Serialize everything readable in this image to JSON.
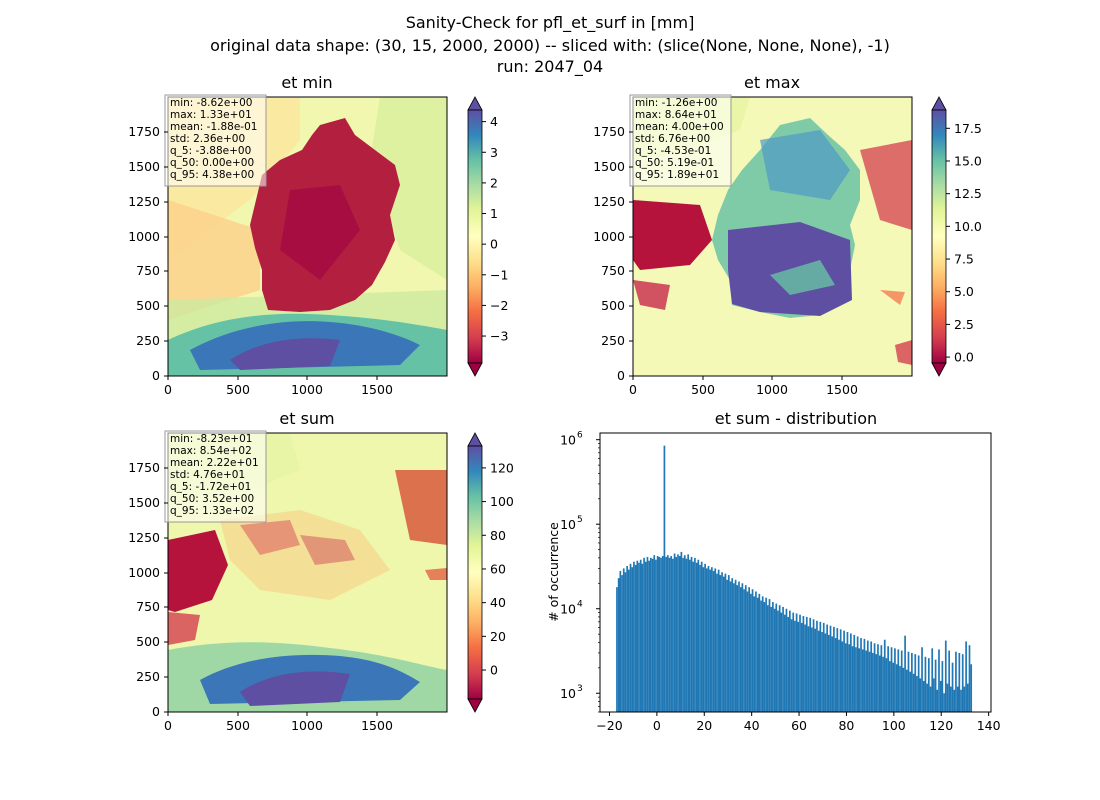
{
  "figure": {
    "title_line1": "Sanity-Check for pfl_et_surf in [mm]",
    "title_line2": "original data shape: (30, 15, 2000, 2000) -- sliced with: (slice(None, None, None), -1)",
    "title_line3": "run: 2047_04"
  },
  "chart_data": [
    {
      "type": "heatmap",
      "title": "et min",
      "xlim": [
        0,
        2000
      ],
      "ylim": [
        0,
        2000
      ],
      "xticks": [
        "0",
        "500",
        "1000",
        "1500"
      ],
      "yticks": [
        "0",
        "250",
        "500",
        "750",
        "1000",
        "1250",
        "1500",
        "1750"
      ],
      "colormap": "Spectral",
      "colorbar": {
        "min": -3.88,
        "max": 4.38,
        "ticks": [
          "−3",
          "−2",
          "−1",
          "0",
          "1",
          "2",
          "3",
          "4"
        ],
        "tick_values": [
          -3,
          -2,
          -1,
          0,
          1,
          2,
          3,
          4
        ],
        "extend": "both"
      },
      "stats": [
        "min: -8.62e+00",
        "max: 1.33e+01",
        "mean: -1.88e-01",
        "std: 2.36e+00",
        "q_5: -3.88e+00",
        "q_50: 0.00e+00",
        "q_95: 4.38e+00"
      ]
    },
    {
      "type": "heatmap",
      "title": "et max",
      "xlim": [
        0,
        2000
      ],
      "ylim": [
        0,
        2000
      ],
      "xticks": [
        "0",
        "500",
        "1000",
        "1500"
      ],
      "yticks": [
        "0",
        "250",
        "500",
        "750",
        "1000",
        "1250",
        "1500",
        "1750"
      ],
      "colormap": "Spectral",
      "colorbar": {
        "min": -0.453,
        "max": 18.9,
        "ticks": [
          "0.0",
          "2.5",
          "5.0",
          "7.5",
          "10.0",
          "12.5",
          "15.0",
          "17.5"
        ],
        "tick_values": [
          0,
          2.5,
          5,
          7.5,
          10,
          12.5,
          15,
          17.5
        ],
        "extend": "both"
      },
      "stats": [
        "min: -1.26e+00",
        "max: 8.64e+01",
        "mean: 4.00e+00",
        "std: 6.76e+00",
        "q_5: -4.53e-01",
        "q_50: 5.19e-01",
        "q_95: 1.89e+01"
      ]
    },
    {
      "type": "heatmap",
      "title": "et sum",
      "xlim": [
        0,
        2000
      ],
      "ylim": [
        0,
        2000
      ],
      "xticks": [
        "0",
        "500",
        "1000",
        "1500"
      ],
      "yticks": [
        "0",
        "250",
        "500",
        "750",
        "1000",
        "1250",
        "1500",
        "1750"
      ],
      "colormap": "Spectral",
      "colorbar": {
        "min": -17.2,
        "max": 133,
        "ticks": [
          "0",
          "20",
          "40",
          "60",
          "80",
          "100",
          "120"
        ],
        "tick_values": [
          0,
          20,
          40,
          60,
          80,
          100,
          120
        ],
        "extend": "both"
      },
      "stats": [
        "min: -8.23e+01",
        "max: 8.54e+02",
        "mean: 2.22e+01",
        "std: 4.76e+01",
        "q_5: -1.72e+01",
        "q_50: 3.52e+00",
        "q_95: 1.33e+02"
      ]
    },
    {
      "type": "bar",
      "title": "et sum - distribution",
      "xlabel": "",
      "ylabel": "# of occurrence",
      "yscale": "log",
      "xlim": [
        -24,
        141
      ],
      "ylim": [
        600,
        1200000
      ],
      "xticks": [
        -20,
        0,
        20,
        40,
        60,
        80,
        100,
        120,
        140
      ],
      "xtick_labels": [
        "−20",
        "0",
        "20",
        "40",
        "60",
        "80",
        "100",
        "120",
        "140"
      ],
      "yticks": [
        1000,
        10000,
        100000,
        1000000
      ],
      "ytick_labels": [
        "10",
        "10",
        "10",
        "10"
      ],
      "ytick_exponents": [
        "3",
        "4",
        "5",
        "6"
      ],
      "bar_color": "#1f77b4",
      "range": [
        -17.2,
        133
      ],
      "counts": [
        18000,
        23000,
        28000,
        25000,
        30000,
        27000,
        32000,
        29000,
        34000,
        31000,
        36000,
        33000,
        37000,
        35000,
        38000,
        34000,
        40000,
        36000,
        41000,
        37000,
        40000,
        39000,
        43000,
        38000,
        42000,
        41000,
        40000,
        42000,
        850000,
        41000,
        43000,
        40000,
        42000,
        39000,
        45000,
        41000,
        44000,
        42000,
        47000,
        40000,
        43000,
        39000,
        44000,
        38000,
        41000,
        36000,
        40000,
        35000,
        38000,
        33000,
        36000,
        31000,
        34000,
        30000,
        32000,
        29000,
        31000,
        28000,
        30000,
        26000,
        29000,
        25000,
        27000,
        24000,
        26000,
        22000,
        25000,
        21000,
        23000,
        20000,
        22000,
        19000,
        21000,
        18000,
        20000,
        17000,
        19000,
        16000,
        18000,
        15000,
        17000,
        14000,
        16000,
        13500,
        15000,
        12500,
        14000,
        12000,
        13500,
        11000,
        13000,
        10500,
        12000,
        10000,
        11500,
        9500,
        11000,
        9000,
        10500,
        8500,
        10000,
        8000,
        9500,
        7500,
        9000,
        7200,
        8800,
        7000,
        8500,
        6800,
        8200,
        6500,
        8000,
        6200,
        7800,
        6000,
        7500,
        5800,
        7200,
        5500,
        7000,
        5300,
        6800,
        5100,
        6500,
        4900,
        6300,
        4700,
        6100,
        4500,
        5900,
        4300,
        5700,
        4100,
        5500,
        3900,
        5300,
        3800,
        5100,
        3600,
        4900,
        3500,
        4700,
        3400,
        4500,
        3300,
        4400,
        3200,
        4200,
        3100,
        4100,
        3000,
        3900,
        2900,
        3800,
        2800,
        3700,
        2700,
        4300,
        2600,
        3600,
        2400,
        3500,
        2300,
        3400,
        2200,
        3300,
        2100,
        3200,
        2000,
        4800,
        1900,
        3100,
        1800,
        3000,
        1700,
        2900,
        1600,
        2800,
        1500,
        3500,
        1400,
        2700,
        1300,
        2600,
        1200,
        3400,
        1500,
        2500,
        1100,
        3300,
        1400,
        2400,
        1000,
        4200,
        1300,
        3200,
        1200,
        2300,
        1100,
        3100,
        1200,
        3000,
        1100,
        2900,
        1200,
        4100,
        1300,
        3700,
        2200
      ]
    }
  ]
}
